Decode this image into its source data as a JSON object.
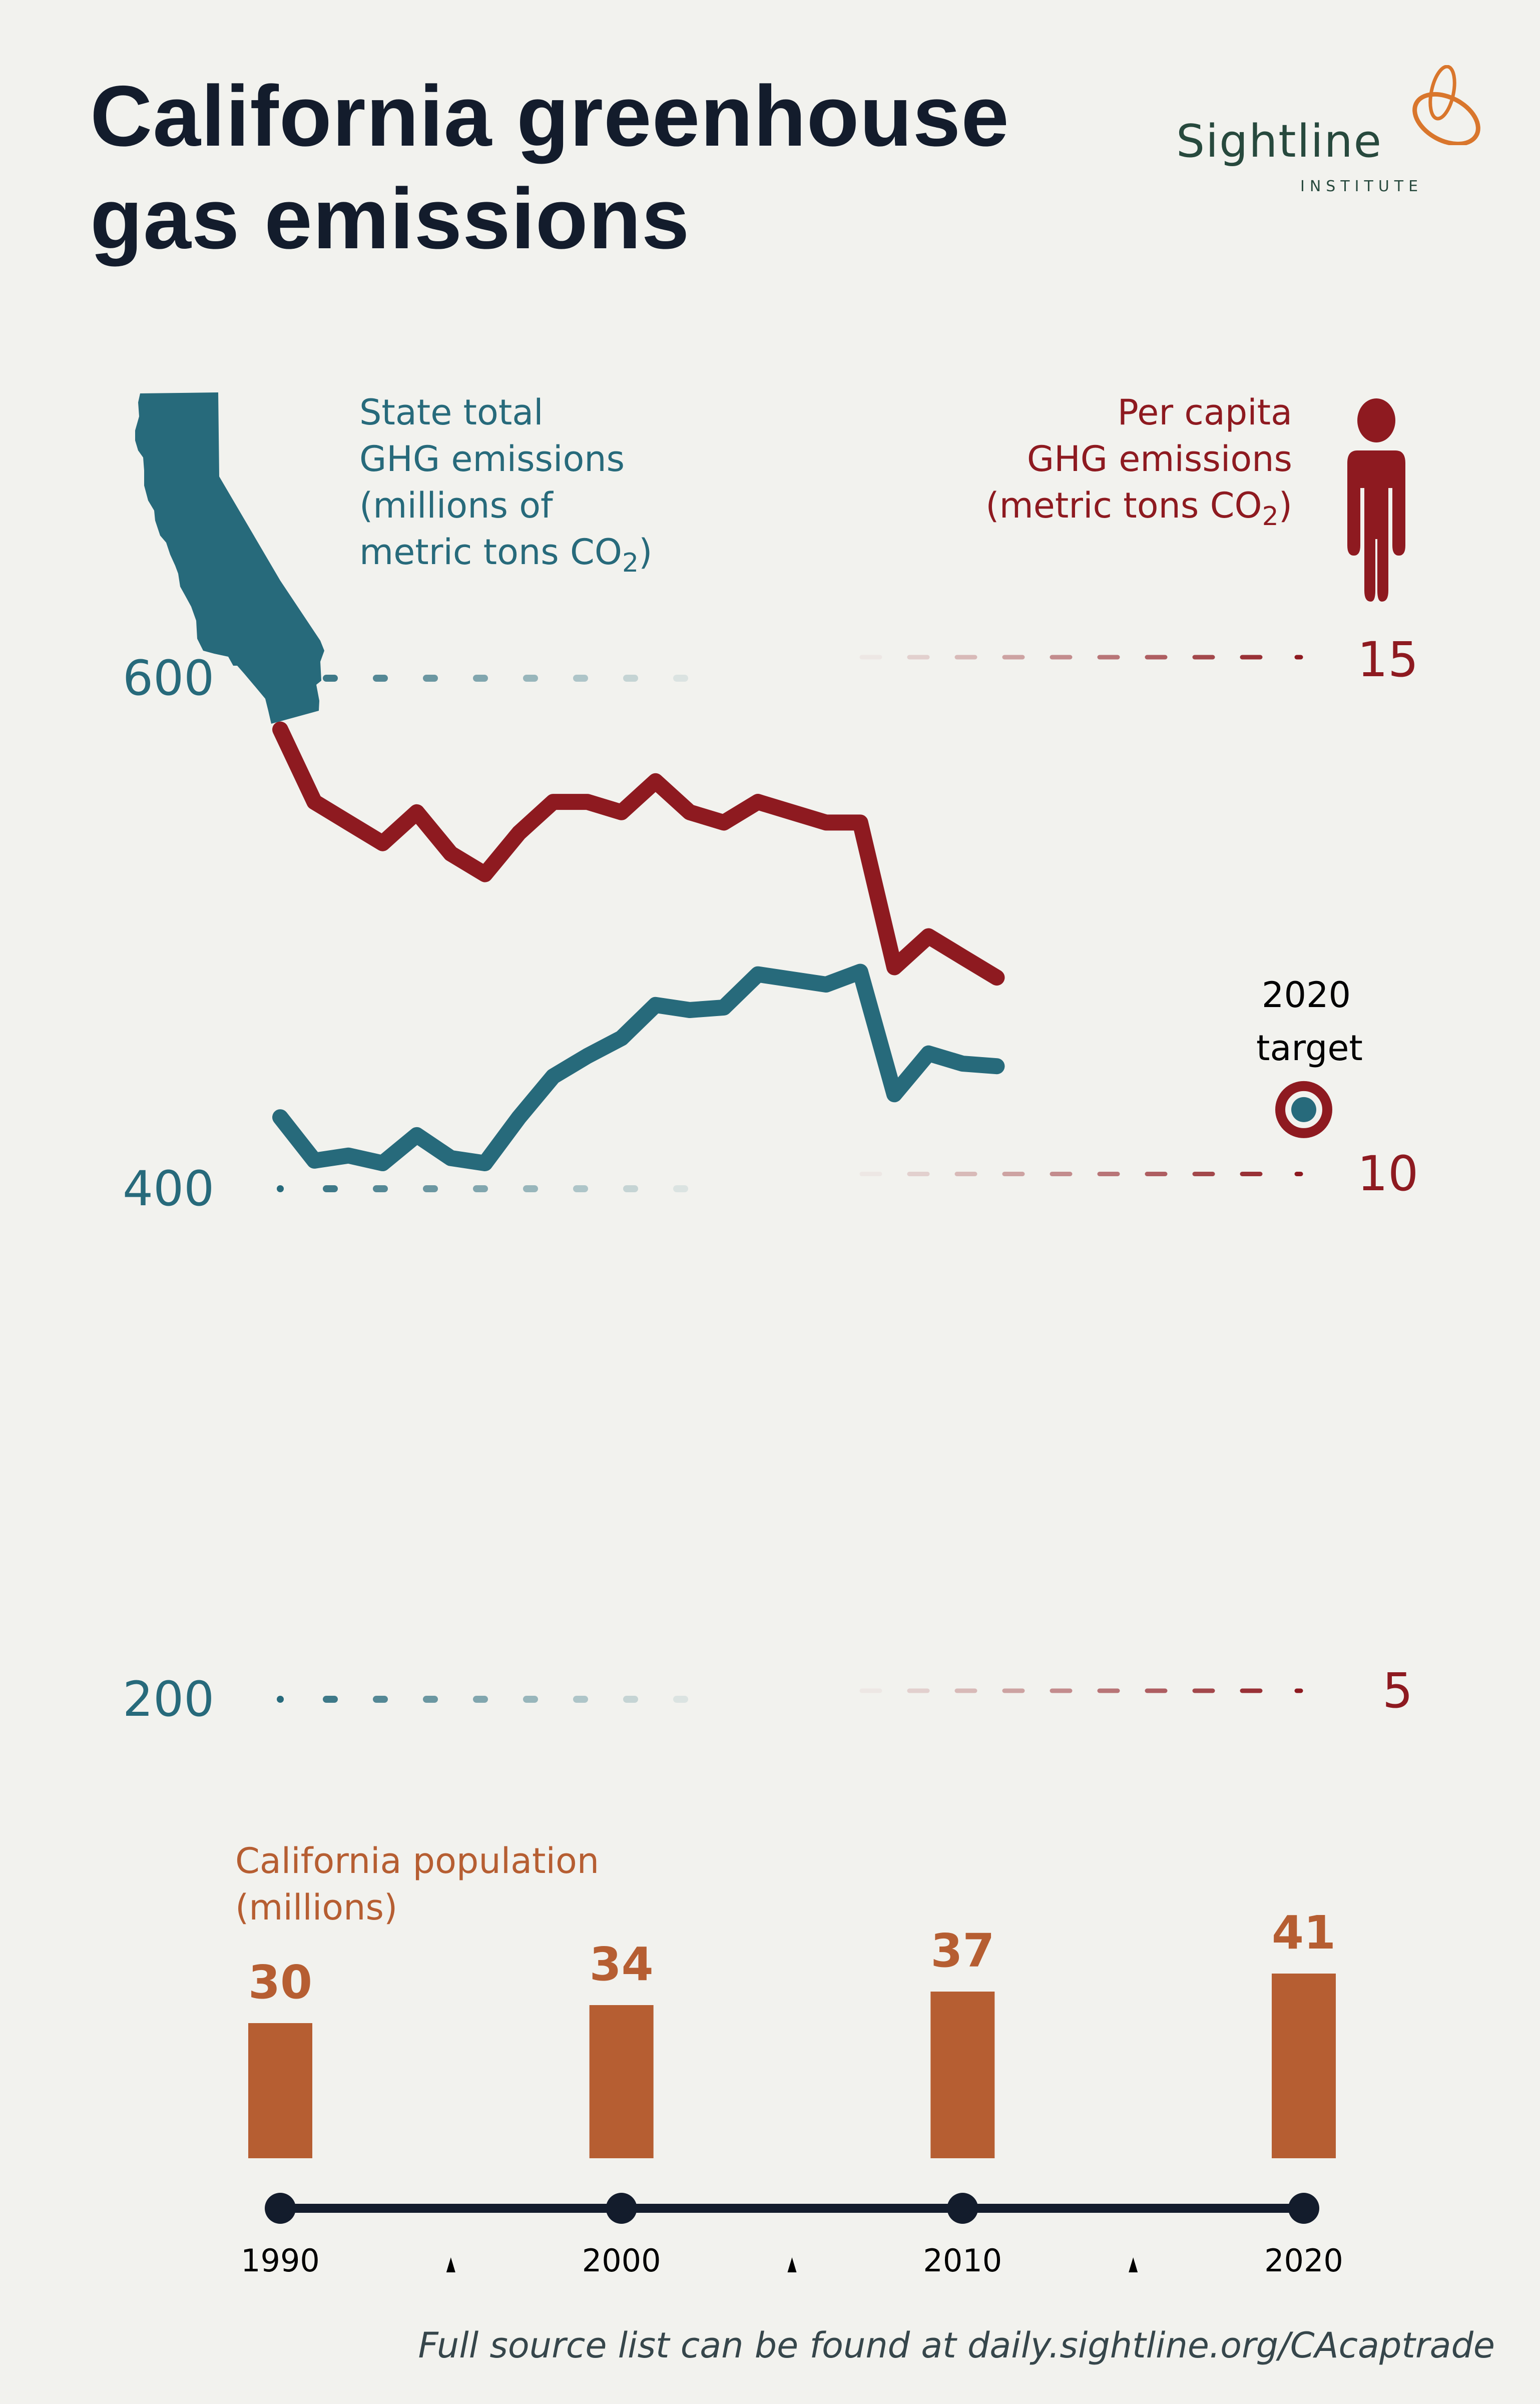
{
  "title": {
    "line1": "California greenhouse",
    "line2": "gas emissions"
  },
  "logo": {
    "name": "Sightline",
    "sub": "INSTITUTE",
    "mark": "sightline-knot-icon"
  },
  "colors": {
    "background": "#f2f2ee",
    "total": "#276a7b",
    "per_capita": "#8e1a20",
    "population": "#b65e32",
    "timeline": "#131c2c",
    "title": "#131c2c",
    "logo_text": "#27493d",
    "logo_mark": "#d9762c"
  },
  "legend": {
    "total": {
      "icon": "california-map-icon",
      "lines": [
        "State total",
        "GHG emissions",
        "(millions of",
        "metric tons CO"
      ],
      "sub": "2",
      "close": ")"
    },
    "per_capita": {
      "icon": "person-icon",
      "lines": [
        "Per capita",
        "GHG emissions",
        "(metric tons CO"
      ],
      "sub": "2",
      "close": ")"
    }
  },
  "target": {
    "line1": "2020",
    "line2": "target",
    "icon": "target-icon"
  },
  "population": {
    "title_line1": "California population",
    "title_line2": "(millions)"
  },
  "source": "Full source list can be found at daily.sightline.org/CAcaptrade",
  "chart_data": [
    {
      "type": "line",
      "title": "California greenhouse gas emissions",
      "x": [
        1990,
        1991,
        1992,
        1993,
        1994,
        1995,
        1996,
        1997,
        1998,
        1999,
        2000,
        2001,
        2002,
        2003,
        2004,
        2005,
        2006,
        2007,
        2008,
        2009,
        2010,
        2011
      ],
      "xlim": [
        1990,
        2020
      ],
      "x_ticks": [
        "1990",
        "2000",
        "2010",
        "2020"
      ],
      "series": [
        {
          "name": "State total GHG emissions (millions of metric tons CO2)",
          "axis": "left",
          "values": [
            428,
            411,
            413,
            410,
            421,
            412,
            410,
            428,
            444,
            452,
            459,
            472,
            470,
            471,
            484,
            482,
            480,
            485,
            437,
            453,
            449,
            448
          ]
        },
        {
          "name": "Per capita GHG emissions (metric tons CO2)",
          "axis": "right",
          "values": [
            14.3,
            13.6,
            13.4,
            13.2,
            13.5,
            13.1,
            12.9,
            13.3,
            13.6,
            13.6,
            13.5,
            13.8,
            13.5,
            13.4,
            13.6,
            13.5,
            13.4,
            13.4,
            12.0,
            12.3,
            12.1,
            11.9
          ]
        }
      ],
      "left_axis": {
        "label": "State total GHG emissions (millions of metric tons CO2)",
        "ticks": [
          "600",
          "400",
          "200"
        ],
        "tick_values": [
          600,
          400,
          200
        ],
        "ylim": [
          200,
          600
        ]
      },
      "right_axis": {
        "label": "Per capita GHG emissions (metric tons CO2)",
        "ticks": [
          "15",
          "10",
          "5"
        ],
        "tick_values": [
          15,
          10,
          5
        ],
        "ylim": [
          5,
          15
        ]
      },
      "target_point": {
        "label": "2020 target",
        "x": 2020,
        "total": 431,
        "per_capita": 10.5
      }
    },
    {
      "type": "bar",
      "title": "California population (millions)",
      "categories": [
        "1990",
        "2000",
        "2010",
        "2020"
      ],
      "values": [
        30,
        34,
        37,
        41
      ],
      "value_labels": [
        "30",
        "34",
        "37",
        "41"
      ]
    }
  ]
}
